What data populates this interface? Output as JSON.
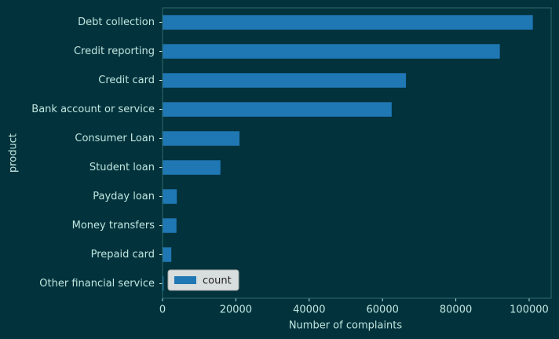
{
  "chart_data": {
    "type": "barh",
    "categories": [
      "Debt collection",
      "Credit reporting",
      "Credit card",
      "Bank account or service",
      "Consumer Loan",
      "Student loan",
      "Payday loan",
      "Money transfers",
      "Prepaid card",
      "Other financial service"
    ],
    "series": [
      {
        "name": "count",
        "color": "#1f77b4",
        "values": [
          101000,
          92000,
          66400,
          62500,
          21000,
          15800,
          3900,
          3800,
          2400,
          300
        ]
      }
    ],
    "xlabel": "Number of complaints",
    "ylabel": "product",
    "xlim": [
      0,
      106000
    ],
    "xticks": [
      0,
      20000,
      40000,
      60000,
      80000,
      100000
    ],
    "legend": "lower left"
  }
}
